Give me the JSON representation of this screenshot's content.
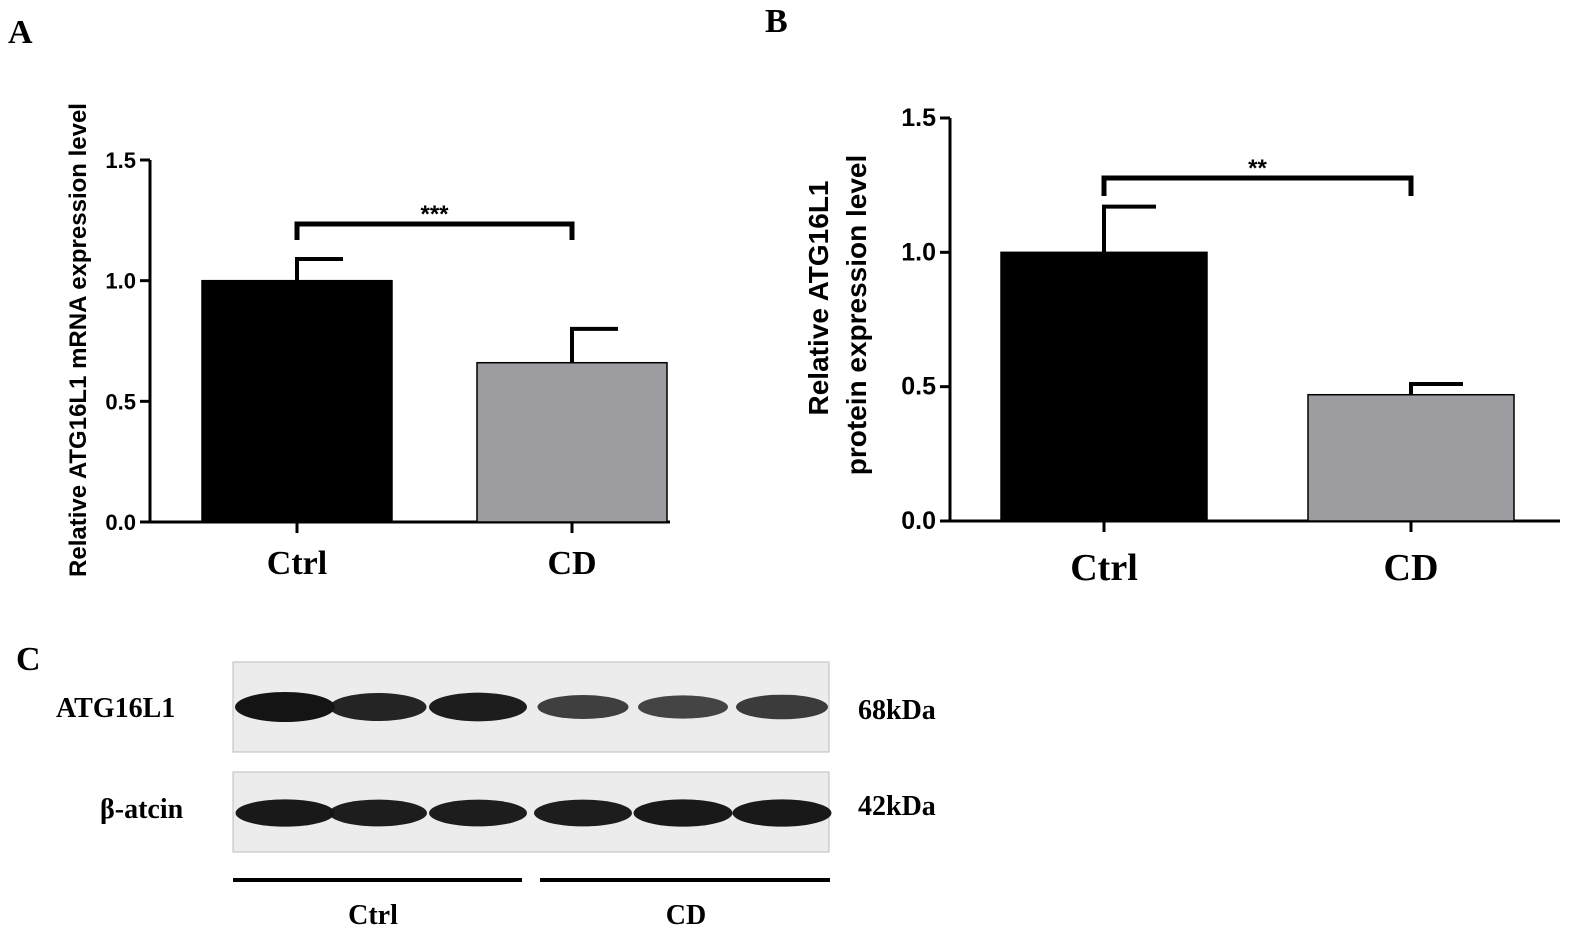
{
  "panels": {
    "a": "A",
    "b": "B",
    "c": "C"
  },
  "colors": {
    "ctrl": "#000000",
    "cd": "#9d9ca1",
    "blot_bg": "#ececec",
    "band": "#141414"
  },
  "chart_data": [
    {
      "type": "bar",
      "panel": "A",
      "ylabel": "Relative ATG16L1 mRNA expression level",
      "categories": [
        "Ctrl",
        "CD"
      ],
      "values": [
        1.0,
        0.66
      ],
      "error": [
        0.09,
        0.14
      ],
      "ylim": [
        0,
        1.5
      ],
      "yticks": [
        "0.0",
        "0.5",
        "1.0",
        "1.5"
      ],
      "significance": "***"
    },
    {
      "type": "bar",
      "panel": "B",
      "ylabel_line1": "Relative ATG16L1",
      "ylabel_line2": "protein expression level",
      "categories": [
        "Ctrl",
        "CD"
      ],
      "values": [
        1.0,
        0.47
      ],
      "error": [
        0.17,
        0.04
      ],
      "ylim": [
        0,
        1.5
      ],
      "yticks": [
        "0.0",
        "0.5",
        "1.0",
        "1.5"
      ],
      "significance": "**"
    }
  ],
  "blot": {
    "rows": [
      {
        "label": "ATG16L1",
        "size": "68kDa",
        "intensity": [
          1.0,
          0.85,
          0.9,
          0.55,
          0.5,
          0.6
        ]
      },
      {
        "label": "β-atcin",
        "size": "42kDa",
        "intensity": [
          0.95,
          0.9,
          0.9,
          0.9,
          0.95,
          0.95
        ]
      }
    ],
    "groups": [
      "Ctrl",
      "CD"
    ]
  }
}
